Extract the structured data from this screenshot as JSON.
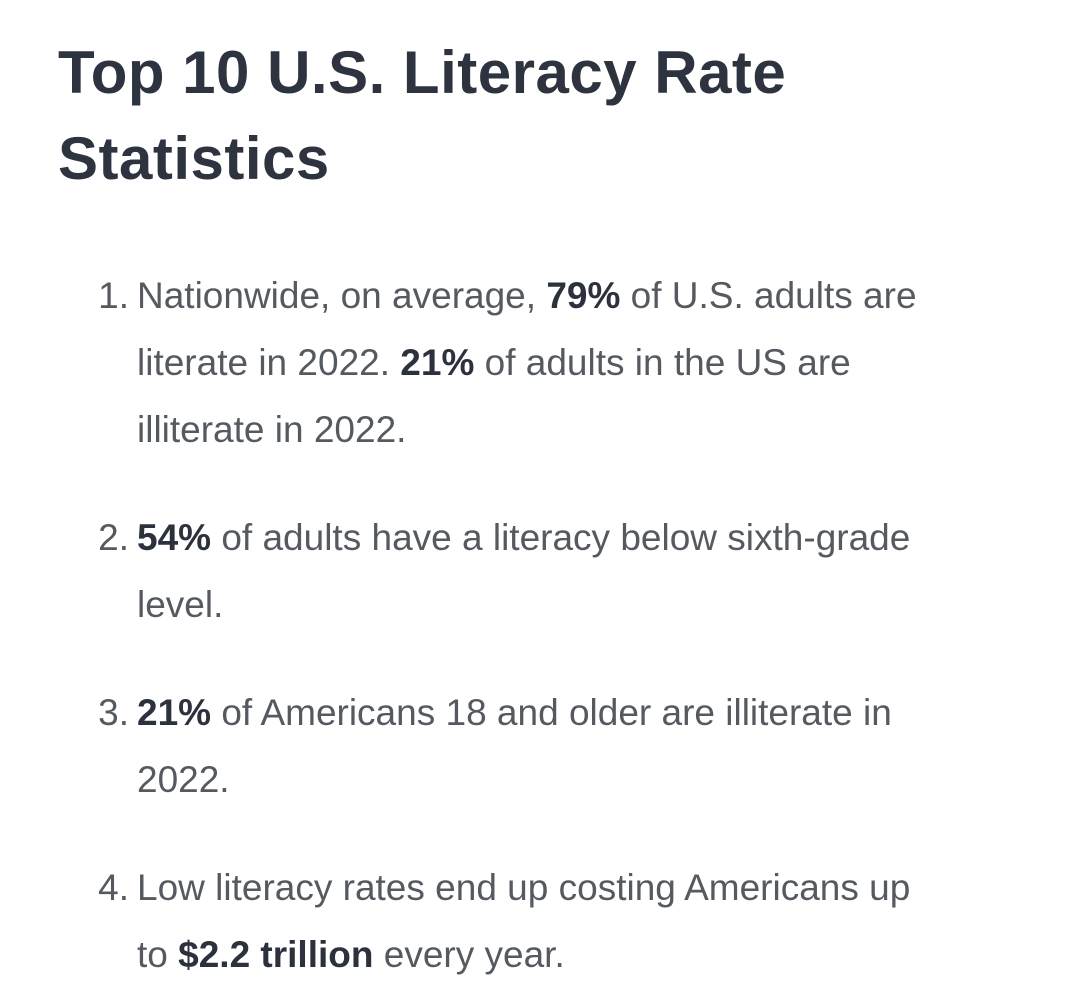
{
  "page": {
    "title": "Top 10 U.S. Literacy Rate Statistics"
  },
  "colors": {
    "background": "#ffffff",
    "heading": "#2d333f",
    "body_text": "#555a61",
    "bold_text": "#2c323d"
  },
  "list": {
    "type": "ordered",
    "items": [
      {
        "number": "1.",
        "segments": [
          {
            "text": "Nationwide, on average, ",
            "bold": false
          },
          {
            "text": "79%",
            "bold": true
          },
          {
            "text": " of U.S. adults are",
            "bold": false
          },
          {
            "break": true
          },
          {
            "text": "literate in 2022. ",
            "bold": false
          },
          {
            "text": "21%",
            "bold": true
          },
          {
            "text": " of adults in the US are",
            "bold": false
          },
          {
            "break": true
          },
          {
            "text": "illiterate in 2022.",
            "bold": false
          }
        ]
      },
      {
        "number": "2.",
        "segments": [
          {
            "text": "54%",
            "bold": true
          },
          {
            "text": " of adults have a literacy below sixth-grade",
            "bold": false
          },
          {
            "break": true
          },
          {
            "text": "level.",
            "bold": false
          }
        ]
      },
      {
        "number": "3.",
        "segments": [
          {
            "text": "21%",
            "bold": true
          },
          {
            "text": " of Americans 18 and older are illiterate in",
            "bold": false
          },
          {
            "break": true
          },
          {
            "text": "2022.",
            "bold": false
          }
        ]
      },
      {
        "number": "4.",
        "segments": [
          {
            "text": "Low literacy rates end up costing Americans up",
            "bold": false
          },
          {
            "break": true
          },
          {
            "text": "to ",
            "bold": false
          },
          {
            "text": "$2.2 trillion",
            "bold": true
          },
          {
            "text": " every year.",
            "bold": false
          }
        ]
      }
    ]
  }
}
